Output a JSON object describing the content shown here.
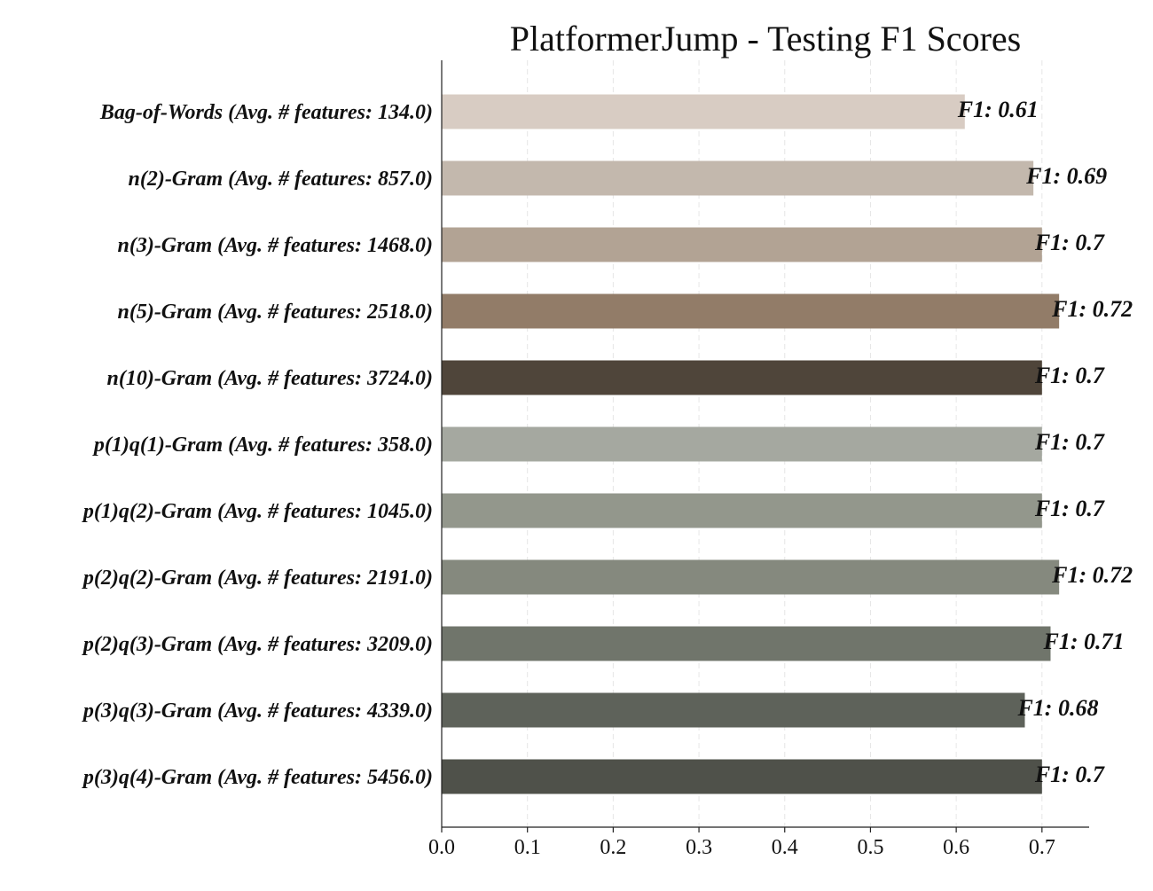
{
  "chart_data": {
    "type": "bar",
    "orientation": "horizontal",
    "title": "PlatformerJump - Testing F1 Scores",
    "xlabel": "",
    "ylabel": "",
    "xlim": [
      0,
      0.755
    ],
    "xticks": [
      "0.0",
      "0.1",
      "0.2",
      "0.3",
      "0.4",
      "0.5",
      "0.6",
      "0.7"
    ],
    "grid": "vertical dashed",
    "legend": "none",
    "categories": [
      "Bag-of-Words (Avg. # features: 134.0)",
      "n(2)-Gram (Avg. # features: 857.0)",
      "n(3)-Gram (Avg. # features: 1468.0)",
      "n(5)-Gram (Avg. # features: 2518.0)",
      "n(10)-Gram (Avg. # features: 3724.0)",
      "p(1)q(1)-Gram (Avg. # features: 358.0)",
      "p(1)q(2)-Gram (Avg. # features: 1045.0)",
      "p(2)q(2)-Gram (Avg. # features: 2191.0)",
      "p(2)q(3)-Gram (Avg. # features: 3209.0)",
      "p(3)q(3)-Gram (Avg. # features: 4339.0)",
      "p(3)q(4)-Gram (Avg. # features: 5456.0)"
    ],
    "values": [
      0.61,
      0.69,
      0.7,
      0.72,
      0.7,
      0.7,
      0.7,
      0.72,
      0.71,
      0.68,
      0.7
    ],
    "value_labels": [
      "F1: 0.61",
      "F1: 0.69",
      "F1: 0.7",
      "F1: 0.72",
      "F1: 0.7",
      "F1: 0.7",
      "F1: 0.7",
      "F1: 0.72",
      "F1: 0.71",
      "F1: 0.68",
      "F1: 0.7"
    ],
    "colors": [
      "#d8ccc3",
      "#c3b8ad",
      "#b2a394",
      "#927c68",
      "#4f453a",
      "#a5a8a0",
      "#93978c",
      "#85897e",
      "#70756b",
      "#5e625a",
      "#4f514a"
    ]
  }
}
